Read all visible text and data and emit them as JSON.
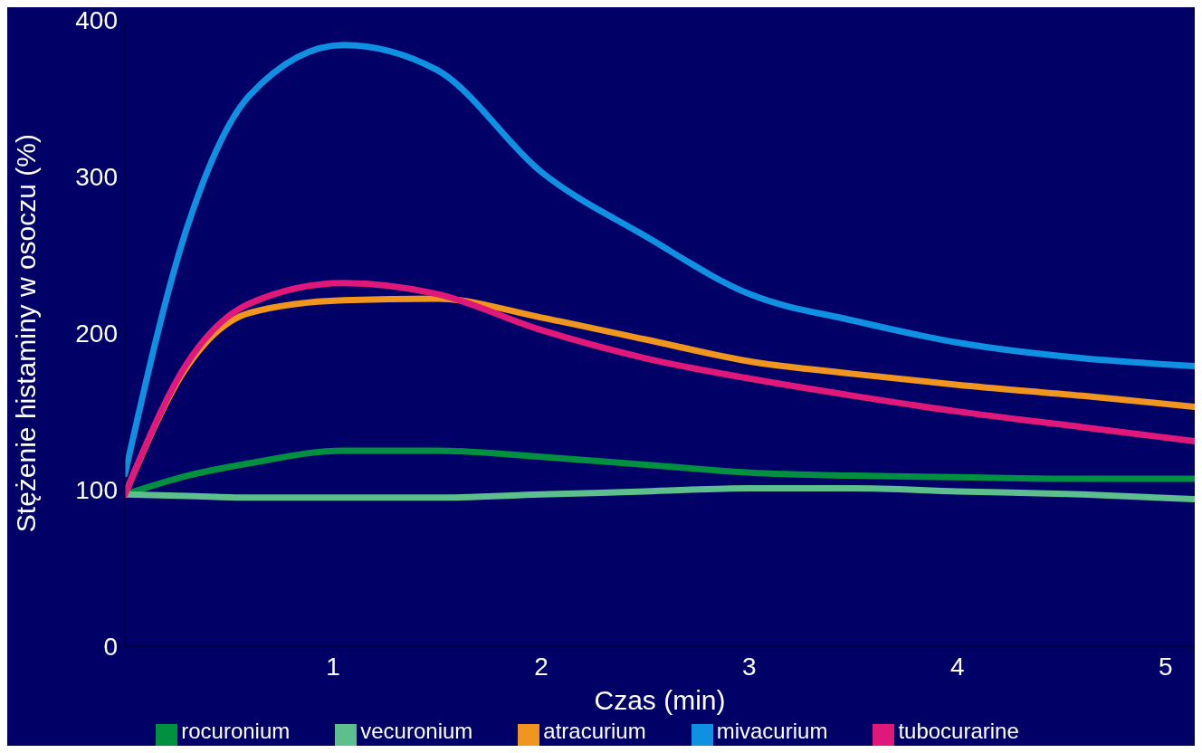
{
  "chart_data": {
    "type": "line",
    "xlabel": "Czas (min)",
    "ylabel": "Stężenie histaminy w osoczu (%)",
    "x": [
      0,
      0.3,
      0.6,
      1.05,
      1.5,
      2,
      2.5,
      3,
      3.5,
      4,
      4.6,
      5.14
    ],
    "xlim": [
      0,
      5.14
    ],
    "xticks": [
      1,
      2,
      3,
      4,
      5
    ],
    "ylim": [
      0,
      400
    ],
    "yticks": [
      0,
      100,
      200,
      300,
      400
    ],
    "legend": "bottom",
    "series": [
      {
        "name": "rocuronium",
        "color": "#009040",
        "values": [
          97,
          109,
          117,
          125,
          125,
          121,
          116,
          111,
          109,
          108,
          107,
          107
        ]
      },
      {
        "name": "vecuronium",
        "color": "#5dbf8c",
        "values": [
          97,
          96,
          95,
          95,
          95,
          97,
          99,
          101,
          101,
          99,
          97,
          94
        ]
      },
      {
        "name": "atracurium",
        "color": "#f0961e",
        "values": [
          97,
          179,
          213,
          221,
          222,
          210,
          196,
          182,
          174,
          167,
          160,
          153
        ]
      },
      {
        "name": "mivacurium",
        "color": "#1090e0",
        "values": [
          110,
          268,
          352,
          384,
          368,
          303,
          262,
          225,
          208,
          194,
          184,
          179
        ]
      },
      {
        "name": "tubocurarine",
        "color": "#e0187a",
        "values": [
          97,
          181,
          219,
          232,
          225,
          202,
          184,
          171,
          160,
          150,
          140,
          131
        ]
      }
    ]
  }
}
